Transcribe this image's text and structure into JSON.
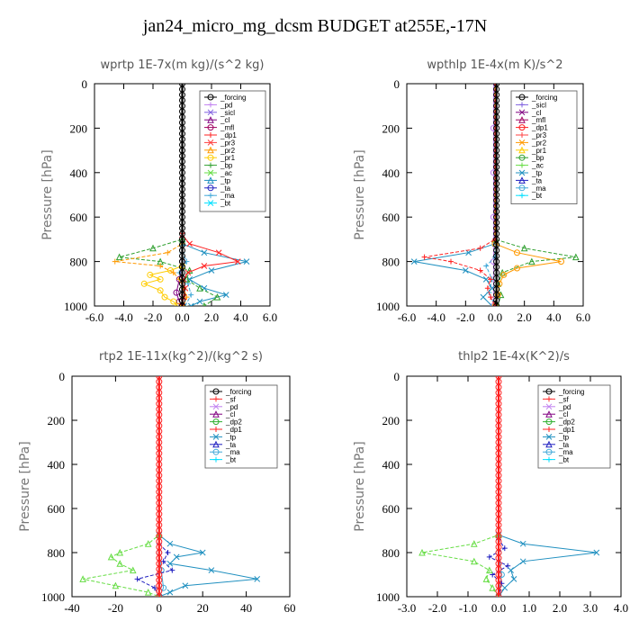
{
  "title": "jan24_micro_mg_dcsm  BUDGET at255E,-17N",
  "colors": {
    "forcing": "#000000",
    "pd": "#c080f0",
    "sicl": "#8060e0",
    "cl": "#800080",
    "mfl": "#a00060",
    "dp1": "#ff2020",
    "pr3": "#ff4040",
    "pr2": "#ff9900",
    "pr1": "#ffcc00",
    "bp": "#30a030",
    "ac": "#66dd44",
    "tp": "#2090c0",
    "ta": "#2020c0",
    "ma": "#40a8d8",
    "bt": "#00e0ff",
    "sf": "#ff3030",
    "dp2": "#30b030"
  },
  "chart_data": [
    {
      "type": "line",
      "title": "wprtp   1E-7x(m kg)/(s^2 kg)",
      "ylabel": "Pressure [hPa]",
      "xlim": [
        -6,
        6
      ],
      "ylim": [
        1000,
        0
      ],
      "xticks": [
        "-6.0",
        "-4.0",
        "-2.0",
        "0.0",
        "2.0",
        "4.0",
        "6.0"
      ],
      "yticks": [
        "0",
        "200",
        "400",
        "600",
        "800",
        "1000"
      ],
      "legend": [
        "_forcing",
        "_pd",
        "_sicl",
        "_cl",
        "_mfl",
        "_dp1",
        "_pr3",
        "_pr2",
        "_pr1",
        "_bp",
        "_ac",
        "_tp",
        "_ta",
        "_ma",
        "_bt"
      ],
      "series": [
        {
          "name": "_forcing",
          "color": "#000000",
          "p": [
            0,
            100,
            200,
            300,
            400,
            500,
            600,
            700,
            800,
            900,
            1000
          ],
          "v": [
            0,
            0,
            0,
            0,
            0,
            0,
            0,
            0,
            0,
            0,
            0
          ]
        },
        {
          "name": "_dp1",
          "color": "#ff2020",
          "p": [
            0,
            680,
            720,
            760,
            800,
            820,
            850,
            880,
            920,
            960,
            1000
          ],
          "v": [
            0,
            0,
            0.5,
            2.5,
            3.8,
            1.5,
            0.4,
            0.1,
            0.2,
            0.1,
            0
          ]
        },
        {
          "name": "_pr2",
          "color": "#ff9900",
          "p": [
            0,
            720,
            760,
            800,
            820,
            850,
            880,
            920,
            960,
            1000
          ],
          "v": [
            0,
            0,
            -1.0,
            -4.6,
            -1.5,
            -0.6,
            -0.2,
            0.1,
            0.3,
            0.1
          ]
        },
        {
          "name": "_pr1",
          "color": "#ffcc00",
          "p": [
            0,
            820,
            840,
            860,
            880,
            900,
            930,
            960,
            980,
            1000
          ],
          "v": [
            0,
            0,
            -0.8,
            -2.2,
            -1.5,
            -2.6,
            -1.5,
            -1.2,
            -0.6,
            -0.3
          ]
        },
        {
          "name": "_bp",
          "color": "#30a030",
          "p": [
            0,
            700,
            740,
            780,
            800,
            840,
            880,
            920,
            960,
            1000
          ],
          "v": [
            0,
            0,
            -2.0,
            -4.3,
            -1.5,
            0.5,
            0.3,
            1.2,
            2.4,
            1.5
          ]
        },
        {
          "name": "_tp",
          "color": "#2090c0",
          "p": [
            0,
            720,
            760,
            800,
            840,
            880,
            920,
            950,
            980,
            1000
          ],
          "v": [
            0,
            0,
            1.5,
            4.4,
            2.0,
            0.5,
            1.5,
            3.0,
            1.2,
            0.6
          ]
        },
        {
          "name": "_ma",
          "color": "#40a8d8",
          "p": [
            0,
            760,
            800,
            850,
            900,
            950,
            1000
          ],
          "v": [
            0,
            0,
            0.3,
            -0.2,
            0.4,
            0.6,
            0.2
          ]
        },
        {
          "name": "_cl",
          "color": "#800080",
          "p": [
            0,
            800,
            880,
            940,
            980,
            1000
          ],
          "v": [
            0,
            0,
            -0.2,
            -0.4,
            -0.2,
            0
          ]
        }
      ]
    },
    {
      "type": "line",
      "title": "wpthlp   1E-4x(m K)/s^2",
      "ylabel": "Pressure [hPa]",
      "xlim": [
        -6,
        6
      ],
      "ylim": [
        1000,
        0
      ],
      "xticks": [
        "-6.0",
        "-4.0",
        "-2.0",
        "0.0",
        "2.0",
        "4.0",
        "6.0"
      ],
      "yticks": [
        "0",
        "200",
        "400",
        "600",
        "800",
        "1000"
      ],
      "legend": [
        "_forcing",
        "_sicl",
        "_cl",
        "_mfl",
        "_dp1",
        "_pr3",
        "_pr2",
        "_pr1",
        "_bp",
        "_ac",
        "_tp",
        "_ta",
        "_ma",
        "_bt"
      ],
      "series": [
        {
          "name": "_forcing",
          "color": "#000000",
          "p": [
            0,
            100,
            200,
            300,
            400,
            500,
            600,
            700,
            800,
            900,
            1000
          ],
          "v": [
            0.1,
            0.1,
            0.1,
            0.1,
            0.1,
            0.1,
            0.1,
            0.1,
            0.1,
            0.1,
            0.1
          ]
        },
        {
          "name": "_dp1",
          "color": "#ff2020",
          "p": [
            0,
            700,
            740,
            780,
            800,
            840,
            880,
            920,
            960,
            1000
          ],
          "v": [
            0,
            0,
            -1.0,
            -4.8,
            -3.0,
            -1.0,
            -0.3,
            -0.5,
            -0.3,
            0
          ]
        },
        {
          "name": "_pr2",
          "color": "#ff9900",
          "p": [
            0,
            720,
            760,
            800,
            830,
            860,
            900,
            950,
            1000
          ],
          "v": [
            0,
            0,
            1.5,
            4.5,
            1.5,
            0.6,
            0.3,
            0.2,
            0
          ]
        },
        {
          "name": "_bp",
          "color": "#30a030",
          "p": [
            0,
            700,
            740,
            780,
            800,
            850,
            900,
            950,
            1000
          ],
          "v": [
            0,
            0,
            2.0,
            5.5,
            2.5,
            0.5,
            0.2,
            0.4,
            0.2
          ]
        },
        {
          "name": "_tp",
          "color": "#2090c0",
          "p": [
            0,
            720,
            760,
            800,
            840,
            880,
            920,
            960,
            1000
          ],
          "v": [
            0,
            0,
            -1.8,
            -5.5,
            -2.0,
            -0.6,
            -0.2,
            -0.8,
            -0.2
          ]
        },
        {
          "name": "_ma",
          "color": "#40a8d8",
          "p": [
            0,
            780,
            820,
            880,
            940,
            1000
          ],
          "v": [
            0,
            0,
            -0.6,
            -0.2,
            -0.4,
            0
          ]
        },
        {
          "name": "_pd",
          "color": "#c080f0",
          "p": [
            0,
            200,
            400,
            600,
            800,
            1000
          ],
          "v": [
            -0.1,
            -0.1,
            -0.1,
            -0.1,
            -0.1,
            -0.1
          ]
        }
      ]
    },
    {
      "type": "line",
      "title": "rtp2   1E-11x(kg^2)/(kg^2 s)",
      "ylabel": "Pressure [hPa]",
      "xlim": [
        -40,
        60
      ],
      "ylim": [
        1000,
        0
      ],
      "xticks": [
        "-40",
        "-20",
        "0",
        "20",
        "40",
        "60"
      ],
      "yticks": [
        "0",
        "200",
        "400",
        "600",
        "800",
        "1000"
      ],
      "legend": [
        "_forcing",
        "_sf",
        "_pd",
        "_cl",
        "_dp2",
        "_dp1",
        "_tp",
        "_ta",
        "_ma",
        "_bt"
      ],
      "series": [
        {
          "name": "_forcing",
          "color": "#ff2020",
          "p": [
            0,
            100,
            200,
            300,
            400,
            500,
            600,
            700,
            800,
            900,
            1000
          ],
          "v": [
            0,
            0,
            0,
            0,
            0,
            0,
            0,
            0,
            0,
            0,
            0
          ]
        },
        {
          "name": "_dp1",
          "color": "#66dd44",
          "p": [
            0,
            720,
            760,
            800,
            820,
            850,
            880,
            920,
            950,
            980,
            1000
          ],
          "v": [
            0,
            0,
            -5,
            -18,
            -22,
            -18,
            -12,
            -35,
            -20,
            -5,
            0
          ]
        },
        {
          "name": "_tp",
          "color": "#2090c0",
          "p": [
            0,
            720,
            760,
            800,
            820,
            850,
            880,
            920,
            950,
            980,
            1000
          ],
          "v": [
            0,
            0,
            5,
            20,
            8,
            5,
            24,
            45,
            12,
            5,
            0
          ]
        },
        {
          "name": "_ta",
          "color": "#2020c0",
          "p": [
            0,
            760,
            800,
            840,
            880,
            920,
            960,
            1000
          ],
          "v": [
            0,
            0,
            4,
            2,
            6,
            -10,
            -2,
            0
          ]
        },
        {
          "name": "_ma",
          "color": "#40a8d8",
          "p": [
            0,
            800,
            880,
            960,
            1000
          ],
          "v": [
            0,
            0,
            1,
            2,
            0
          ]
        }
      ]
    },
    {
      "type": "line",
      "title": "thlp2   1E-4x(K^2)/s",
      "ylabel": "Pressure [hPa]",
      "xlim": [
        -3,
        4
      ],
      "ylim": [
        1000,
        0
      ],
      "xticks": [
        "-3.0",
        "-2.0",
        "-1.0",
        "0.0",
        "1.0",
        "2.0",
        "3.0",
        "4.0"
      ],
      "yticks": [
        "0",
        "200",
        "400",
        "600",
        "800",
        "1000"
      ],
      "legend": [
        "_forcing",
        "_sf",
        "_pd",
        "_cl",
        "_dp2",
        "_dp1",
        "_tp",
        "_ta",
        "_ma",
        "_bt"
      ],
      "series": [
        {
          "name": "_forcing",
          "color": "#ff2020",
          "p": [
            0,
            100,
            200,
            300,
            400,
            500,
            600,
            700,
            800,
            900,
            1000
          ],
          "v": [
            0,
            0,
            0,
            0,
            0,
            0,
            0,
            0,
            0,
            0,
            0
          ]
        },
        {
          "name": "_dp1",
          "color": "#66dd44",
          "p": [
            0,
            720,
            760,
            800,
            840,
            880,
            920,
            960,
            1000
          ],
          "v": [
            0,
            0,
            -0.8,
            -2.5,
            -0.8,
            -0.3,
            -0.4,
            -0.2,
            0
          ]
        },
        {
          "name": "_tp",
          "color": "#2090c0",
          "p": [
            0,
            720,
            760,
            800,
            840,
            880,
            920,
            960,
            1000
          ],
          "v": [
            0,
            0,
            0.8,
            3.2,
            0.8,
            0.4,
            0.5,
            0.2,
            0
          ]
        },
        {
          "name": "_ta",
          "color": "#2020c0",
          "p": [
            0,
            740,
            780,
            820,
            860,
            900,
            940,
            1000
          ],
          "v": [
            0,
            0,
            0.2,
            -0.3,
            0.3,
            -0.2,
            0.1,
            0
          ]
        },
        {
          "name": "_ma",
          "color": "#40a8d8",
          "p": [
            0,
            800,
            900,
            1000
          ],
          "v": [
            0,
            0,
            0.1,
            0
          ]
        }
      ]
    }
  ]
}
